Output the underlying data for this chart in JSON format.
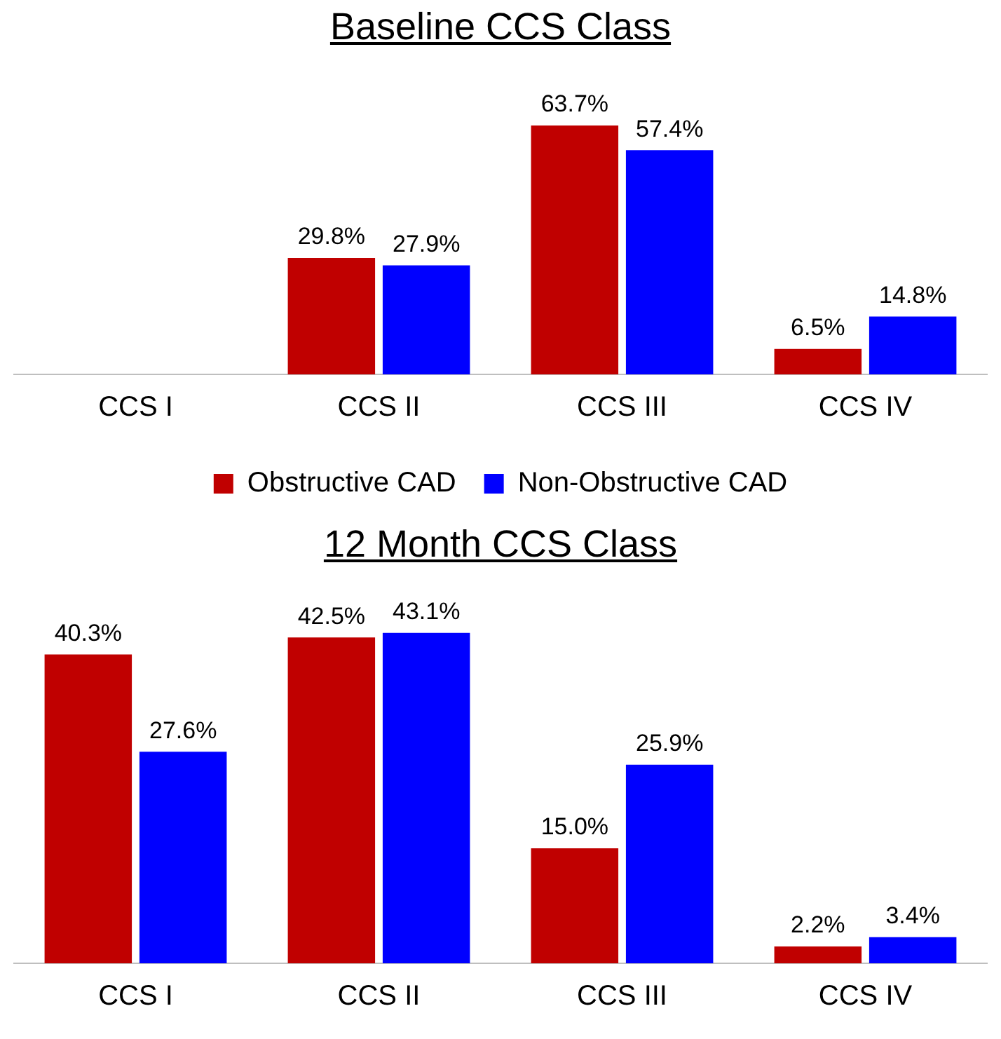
{
  "chart_data": [
    {
      "type": "bar",
      "title": "Baseline CCS Class",
      "categories": [
        "CCS I",
        "CCS II",
        "CCS III",
        "CCS IV"
      ],
      "series": [
        {
          "name": "Obstructive CAD",
          "color": "#c00000",
          "values": [
            null,
            29.8,
            63.7,
            6.5
          ],
          "value_labels": [
            null,
            "29.8%",
            "63.7%",
            "6.5%"
          ]
        },
        {
          "name": "Non-Obstructive CAD",
          "color": "#0000ff",
          "values": [
            null,
            27.9,
            57.4,
            14.8
          ],
          "value_labels": [
            null,
            "27.9%",
            "57.4%",
            "14.8%"
          ]
        }
      ],
      "legend": "bottom",
      "grid": false,
      "tick_labels": "x"
    },
    {
      "type": "bar",
      "title": "12 Month CCS Class",
      "categories": [
        "CCS I",
        "CCS II",
        "CCS III",
        "CCS IV"
      ],
      "series": [
        {
          "color": "#c00000",
          "values": [
            40.3,
            42.5,
            15.0,
            2.2
          ],
          "value_labels": [
            "40.3%",
            "42.5%",
            "15.0%",
            "2.2%"
          ]
        },
        {
          "color": "#0000ff",
          "values": [
            27.6,
            43.1,
            25.9,
            3.4
          ],
          "value_labels": [
            "27.6%",
            "43.1%",
            "25.9%",
            "3.4%"
          ]
        }
      ],
      "legend": false,
      "grid": false,
      "tick_labels": "x"
    }
  ]
}
